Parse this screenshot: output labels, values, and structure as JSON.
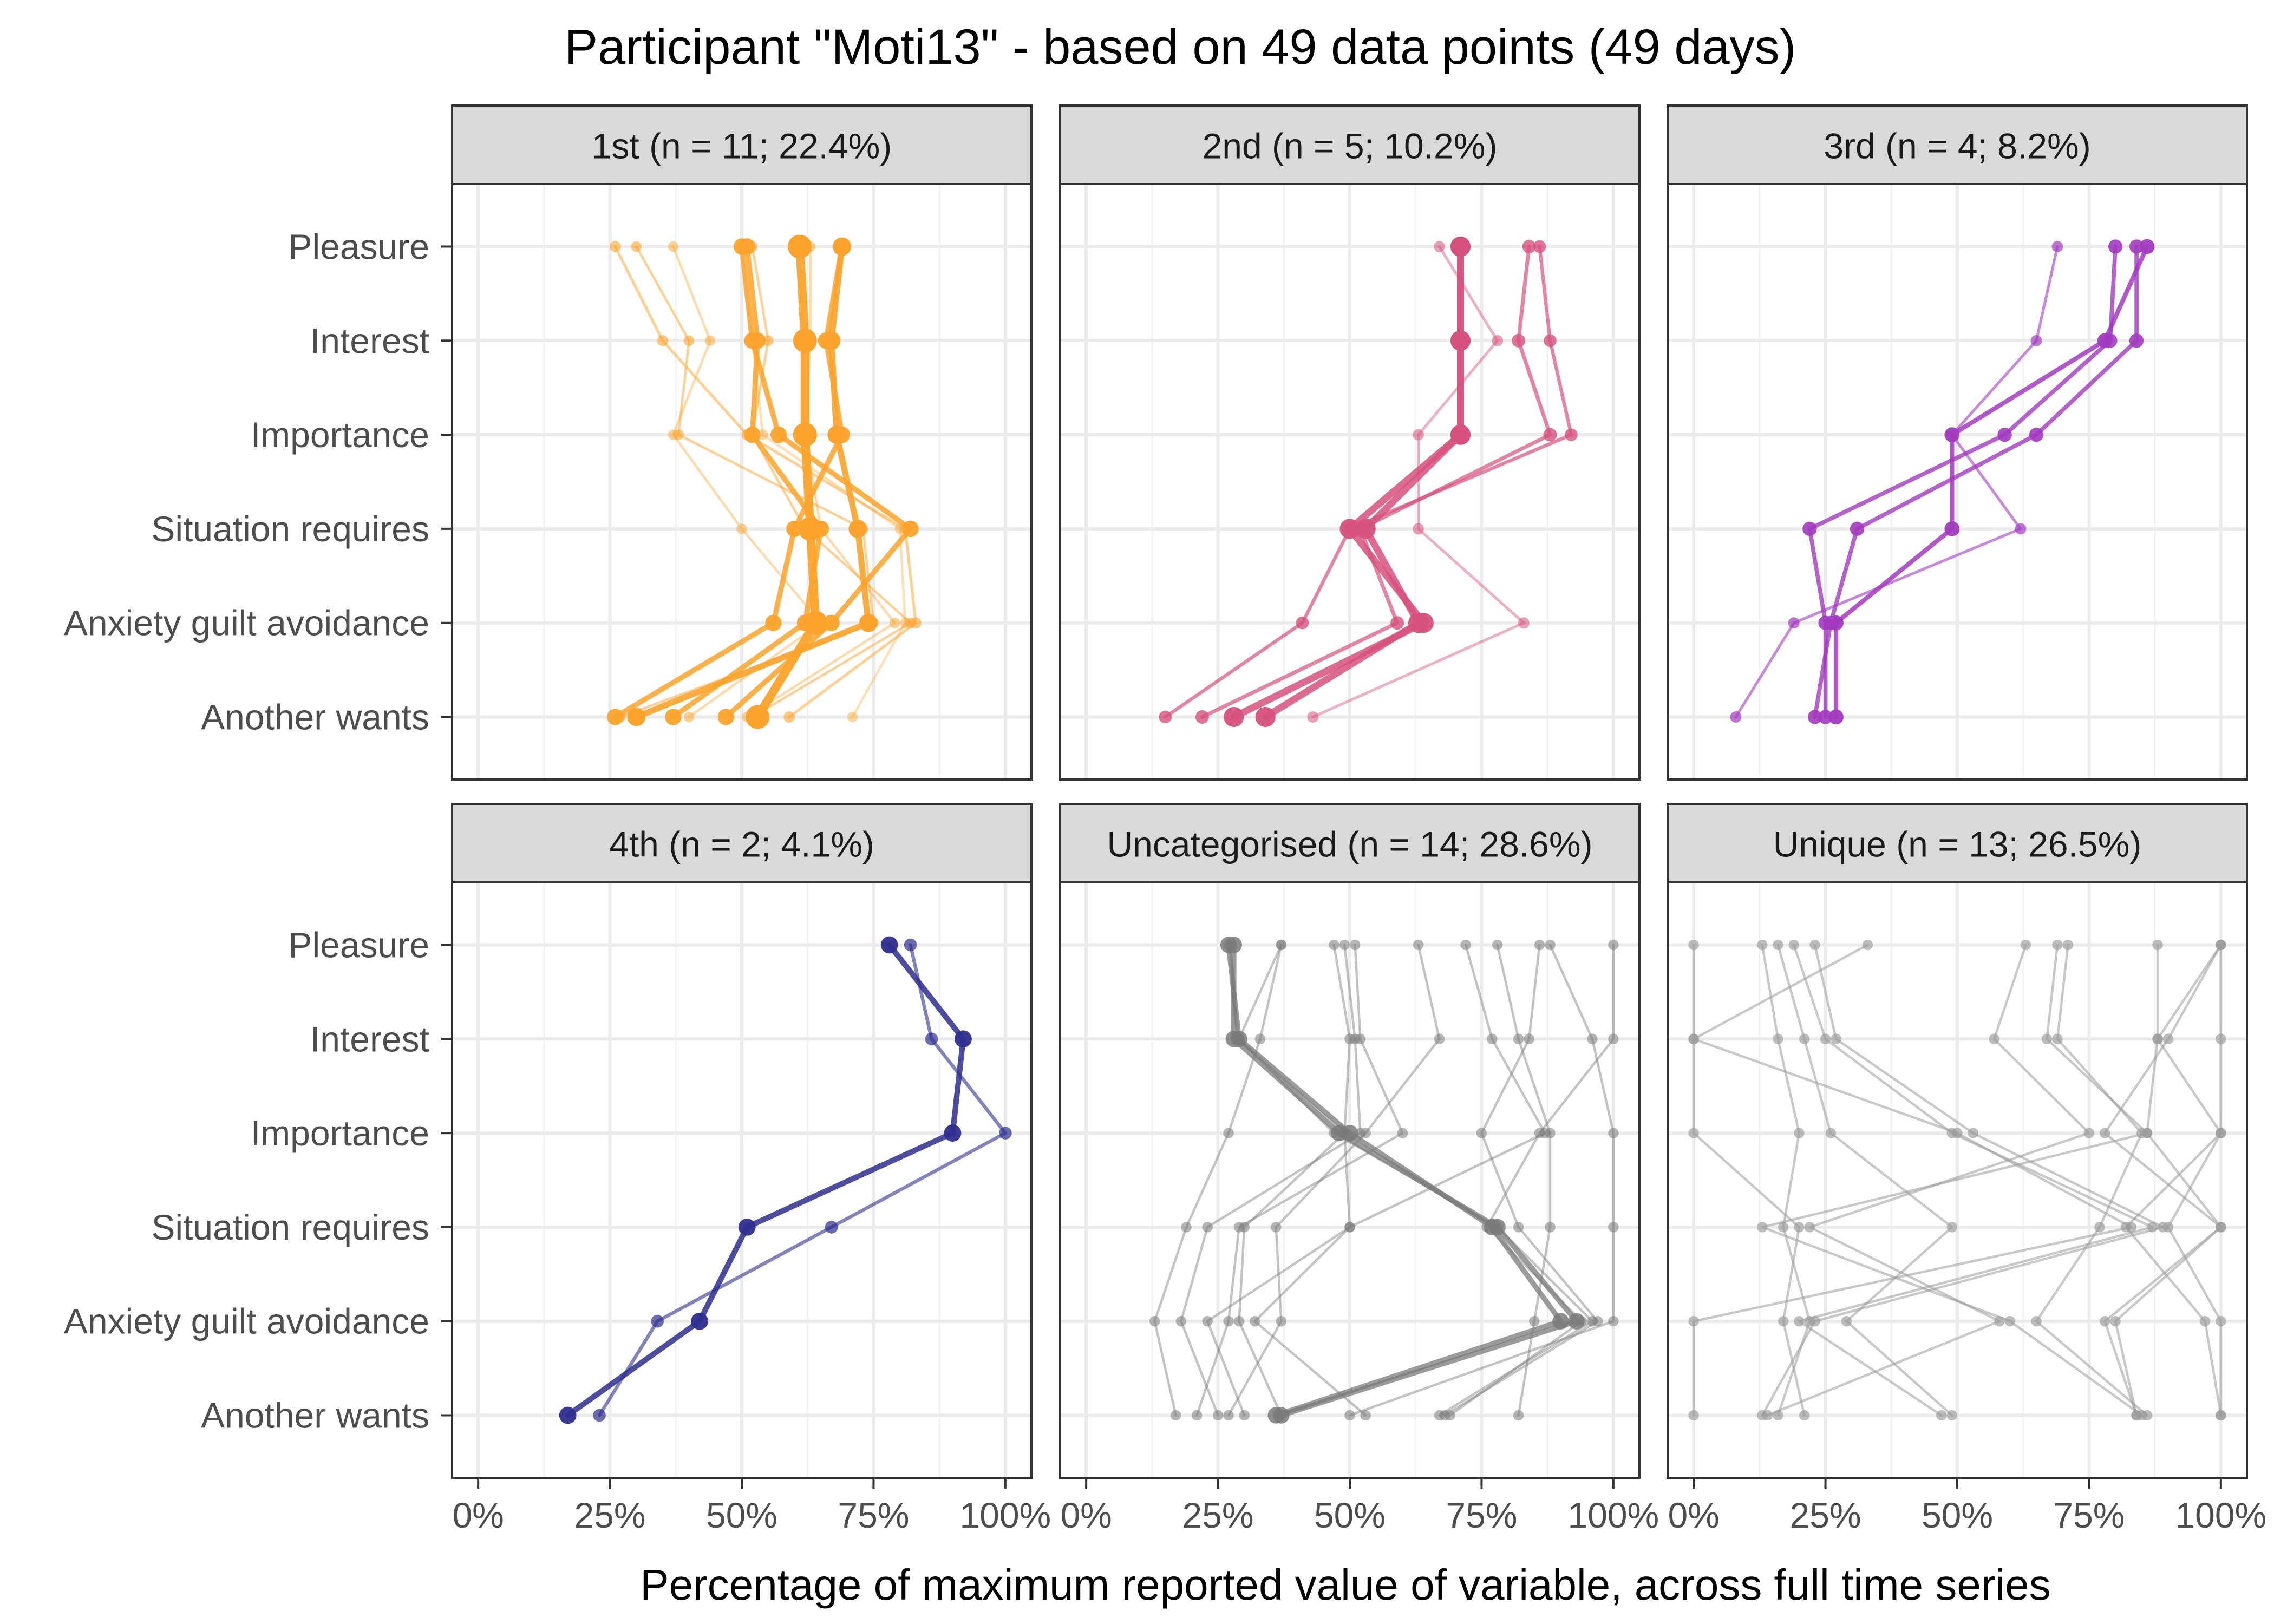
{
  "chart_data": {
    "type": "line",
    "title": "Participant \"Moti13\" - based on 49 data points (49 days)",
    "xlabel": "Percentage of maximum reported value of variable, across full time series",
    "ylabel": "",
    "xlim": [
      0,
      100
    ],
    "x_ticks": [
      "0%",
      "25%",
      "50%",
      "75%",
      "100%"
    ],
    "categories": [
      "Pleasure",
      "Interest",
      "Importance",
      "Situation requires",
      "Anxiety guilt avoidance",
      "Another wants"
    ],
    "grid": true,
    "legend": "none",
    "panels": [
      {
        "title": "1st (n = 11; 22.4%)",
        "color": "#FBA32C",
        "series": [
          {
            "values": [
              30,
              40,
              38,
              73,
              75,
              27
            ],
            "alpha": 0.5,
            "width": 1.4
          },
          {
            "values": [
              37,
              44,
              37,
              50,
              65,
              40
            ],
            "alpha": 0.4,
            "width": 1.4
          },
          {
            "values": [
              52,
              55,
              52,
              62,
              82,
              52
            ],
            "alpha": 0.5,
            "width": 1.4
          },
          {
            "values": [
              63,
              63,
              62,
              65,
              79,
              51
            ],
            "alpha": 0.4,
            "width": 1.4
          },
          {
            "values": [
              50,
              52,
              54,
              80,
              81,
              71
            ],
            "alpha": 0.35,
            "width": 1.4
          },
          {
            "values": [
              26,
              35,
              51,
              81,
              83,
              59
            ],
            "alpha": 0.5,
            "width": 1.6
          },
          {
            "values": [
              51,
              53,
              52,
              65,
              62,
              37
            ],
            "alpha": 0.85,
            "width": 3
          },
          {
            "values": [
              50,
              52,
              57,
              82,
              67,
              47
            ],
            "alpha": 0.85,
            "width": 3
          },
          {
            "values": [
              69,
              66,
              69,
              60,
              56,
              26
            ],
            "alpha": 0.85,
            "width": 3
          },
          {
            "values": [
              69,
              67,
              68,
              72,
              74,
              30
            ],
            "alpha": 0.9,
            "width": 3.5
          },
          {
            "values": [
              61,
              62,
              62,
              63,
              64,
              53
            ],
            "alpha": 0.95,
            "width": 5
          }
        ]
      },
      {
        "title": "2nd (n = 5; 10.2%)",
        "color": "#D6517D",
        "series": [
          {
            "values": [
              67,
              78,
              63,
              63,
              83,
              43
            ],
            "alpha": 0.45,
            "width": 1.6
          },
          {
            "values": [
              86,
              88,
              92,
              50,
              41,
              15
            ],
            "alpha": 0.7,
            "width": 2
          },
          {
            "values": [
              84,
              82,
              88,
              52,
              59,
              22
            ],
            "alpha": 0.7,
            "width": 2.2
          },
          {
            "values": [
              71,
              71,
              71,
              50,
              64,
              28
            ],
            "alpha": 0.85,
            "width": 4
          },
          {
            "values": [
              71,
              71,
              71,
              53,
              63,
              34
            ],
            "alpha": 0.85,
            "width": 4
          }
        ]
      },
      {
        "title": "3rd (n = 4; 8.2%)",
        "color": "#A23ABF",
        "series": [
          {
            "values": [
              69,
              65,
              49,
              62,
              19,
              8
            ],
            "alpha": 0.6,
            "width": 1.6
          },
          {
            "values": [
              80,
              79,
              59,
              22,
              25,
              25
            ],
            "alpha": 0.8,
            "width": 2.4
          },
          {
            "values": [
              84,
              84,
              65,
              31,
              26,
              23
            ],
            "alpha": 0.8,
            "width": 2.4
          },
          {
            "values": [
              86,
              78,
              49,
              49,
              27,
              27
            ],
            "alpha": 0.85,
            "width": 2.6
          }
        ]
      },
      {
        "title": "4th (n = 2; 4.1%)",
        "color": "#2E2E8F",
        "series": [
          {
            "values": [
              82,
              86,
              100,
              67,
              34,
              23
            ],
            "alpha": 0.6,
            "width": 2
          },
          {
            "values": [
              78,
              92,
              90,
              51,
              42,
              17
            ],
            "alpha": 0.85,
            "width": 3.2
          }
        ]
      },
      {
        "title": "Uncategorised (n = 14; 28.6%)",
        "color": "#7A7A7A",
        "series": [
          {
            "values": [
              27,
              29,
              50,
              77,
              90,
              36
            ],
            "alpha": 0.75,
            "width": 3
          },
          {
            "values": [
              28,
              28,
              48,
              78,
              93,
              37
            ],
            "alpha": 0.75,
            "width": 3
          },
          {
            "values": [
              37,
              33,
              27,
              19,
              13,
              17
            ],
            "alpha": 0.45,
            "width": 1.4
          },
          {
            "values": [
              49,
              51,
              52,
              23,
              18,
              25
            ],
            "alpha": 0.45,
            "width": 1.4
          },
          {
            "values": [
              51,
              52,
              60,
              29,
              27,
              21
            ],
            "alpha": 0.45,
            "width": 1.4
          },
          {
            "values": [
              63,
              67,
              53,
              36,
              37,
              27
            ],
            "alpha": 0.45,
            "width": 1.4
          },
          {
            "values": [
              72,
              77,
              87,
              50,
              32,
              53
            ],
            "alpha": 0.45,
            "width": 1.4
          },
          {
            "values": [
              78,
              82,
              88,
              88,
              85,
              82
            ],
            "alpha": 0.45,
            "width": 1.4
          },
          {
            "values": [
              86,
              84,
              75,
              82,
              97,
              68
            ],
            "alpha": 0.45,
            "width": 1.4
          },
          {
            "values": [
              88,
              96,
              100,
              100,
              100,
              50
            ],
            "alpha": 0.45,
            "width": 1.4
          },
          {
            "values": [
              100,
              100,
              86,
              76,
              94,
              69
            ],
            "alpha": 0.45,
            "width": 1.4
          },
          {
            "values": [
              47,
              50,
              49,
              30,
              29,
              37
            ],
            "alpha": 0.45,
            "width": 1.4
          },
          {
            "values": [
              37,
              29,
              49,
              50,
              23,
              30
            ],
            "alpha": 0.45,
            "width": 1.4
          },
          {
            "values": [
              27,
              29,
              47,
              78,
              96,
              67
            ],
            "alpha": 0.45,
            "width": 1.4
          }
        ]
      },
      {
        "title": "Unique (n = 13; 26.5%)",
        "color": "#9A9A9A",
        "series": [
          {
            "values": [
              0,
              0,
              0,
              20,
              17,
              21
            ],
            "alpha": 0.55,
            "width": 1.4
          },
          {
            "values": [
              13,
              16,
              20,
              17,
              22,
              16
            ],
            "alpha": 0.55,
            "width": 1.4
          },
          {
            "values": [
              16,
              21,
              26,
              49,
              29,
              49
            ],
            "alpha": 0.55,
            "width": 1.4
          },
          {
            "values": [
              19,
              25,
              49,
              87,
              20,
              47
            ],
            "alpha": 0.55,
            "width": 1.4
          },
          {
            "values": [
              23,
              27,
              53,
              89,
              23,
              13
            ],
            "alpha": 0.55,
            "width": 1.4
          },
          {
            "values": [
              33,
              0,
              50,
              83,
              0,
              0
            ],
            "alpha": 0.55,
            "width": 1.4
          },
          {
            "values": [
              63,
              57,
              75,
              22,
              58,
              14
            ],
            "alpha": 0.55,
            "width": 1.4
          },
          {
            "values": [
              69,
              67,
              86,
              13,
              60,
              85
            ],
            "alpha": 0.55,
            "width": 1.4
          },
          {
            "values": [
              71,
              69,
              85,
              77,
              65,
              86
            ],
            "alpha": 0.55,
            "width": 1.4
          },
          {
            "values": [
              88,
              88,
              100,
              82,
              97,
              100
            ],
            "alpha": 0.55,
            "width": 1.4
          },
          {
            "values": [
              100,
              88,
              86,
              100,
              80,
              84
            ],
            "alpha": 0.55,
            "width": 1.4
          },
          {
            "values": [
              100,
              90,
              78,
              100,
              78,
              84
            ],
            "alpha": 0.55,
            "width": 1.4
          },
          {
            "values": [
              100,
              100,
              100,
              90,
              100,
              100
            ],
            "alpha": 0.55,
            "width": 1.4
          }
        ]
      }
    ]
  }
}
